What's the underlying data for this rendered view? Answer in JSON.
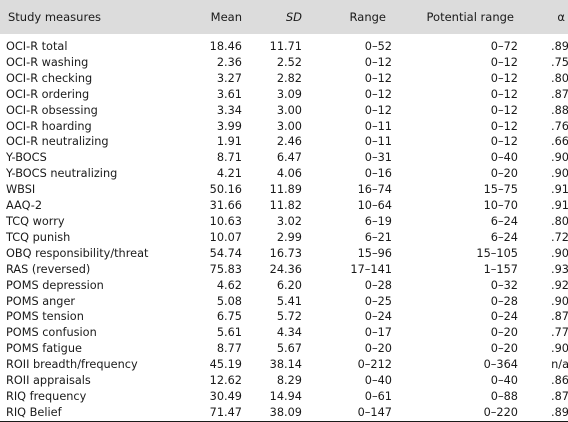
{
  "headers": {
    "measure": "Study measures",
    "mean": "Mean",
    "sd": "SD",
    "range": "Range",
    "potential_range": "Potential range",
    "alpha": "α"
  },
  "rows": [
    {
      "measure": "OCI-R total",
      "mean": "18.46",
      "sd": "11.71",
      "range": "0–52",
      "potential_range": "0–72",
      "alpha": ".89"
    },
    {
      "measure": "OCI-R washing",
      "mean": "2.36",
      "sd": "2.52",
      "range": "0–12",
      "potential_range": "0–12",
      "alpha": ".75"
    },
    {
      "measure": "OCI-R checking",
      "mean": "3.27",
      "sd": "2.82",
      "range": "0–12",
      "potential_range": "0–12",
      "alpha": ".80"
    },
    {
      "measure": "OCI-R ordering",
      "mean": "3.61",
      "sd": "3.09",
      "range": "0–12",
      "potential_range": "0–12",
      "alpha": ".87"
    },
    {
      "measure": "OCI-R obsessing",
      "mean": "3.34",
      "sd": "3.00",
      "range": "0–12",
      "potential_range": "0–12",
      "alpha": ".88"
    },
    {
      "measure": "OCI-R hoarding",
      "mean": "3.99",
      "sd": "3.00",
      "range": "0–11",
      "potential_range": "0–12",
      "alpha": ".76"
    },
    {
      "measure": "OCI-R neutralizing",
      "mean": "1.91",
      "sd": "2.46",
      "range": "0–11",
      "potential_range": "0–12",
      "alpha": ".66"
    },
    {
      "measure": "Y-BOCS",
      "mean": "8.71",
      "sd": "6.47",
      "range": "0–31",
      "potential_range": "0–40",
      "alpha": ".90"
    },
    {
      "measure": "Y-BOCS neutralizing",
      "mean": "4.21",
      "sd": "4.06",
      "range": "0–16",
      "potential_range": "0–20",
      "alpha": ".90"
    },
    {
      "measure": "WBSI",
      "mean": "50.16",
      "sd": "11.89",
      "range": "16–74",
      "potential_range": "15–75",
      "alpha": ".91"
    },
    {
      "measure": "AAQ-2",
      "mean": "31.66",
      "sd": "11.82",
      "range": "10–64",
      "potential_range": "10–70",
      "alpha": ".91"
    },
    {
      "measure": "TCQ worry",
      "mean": "10.63",
      "sd": "3.02",
      "range": "6–19",
      "potential_range": "6–24",
      "alpha": ".80"
    },
    {
      "measure": "TCQ punish",
      "mean": "10.07",
      "sd": "2.99",
      "range": "6–21",
      "potential_range": "6–24",
      "alpha": ".72"
    },
    {
      "measure": "OBQ responsibility/threat",
      "mean": "54.74",
      "sd": "16.73",
      "range": "15–96",
      "potential_range": "15–105",
      "alpha": ".90"
    },
    {
      "measure": "RAS (reversed)",
      "mean": "75.83",
      "sd": "24.36",
      "range": "17–141",
      "potential_range": "1–157",
      "alpha": ".93"
    },
    {
      "measure": "POMS depression",
      "mean": "4.62",
      "sd": "6.20",
      "range": "0–28",
      "potential_range": "0–32",
      "alpha": ".92"
    },
    {
      "measure": "POMS anger",
      "mean": "5.08",
      "sd": "5.41",
      "range": "0–25",
      "potential_range": "0–28",
      "alpha": ".90"
    },
    {
      "measure": "POMS tension",
      "mean": "6.75",
      "sd": "5.72",
      "range": "0–24",
      "potential_range": "0–24",
      "alpha": ".87"
    },
    {
      "measure": "POMS confusion",
      "mean": "5.61",
      "sd": "4.34",
      "range": "0–17",
      "potential_range": "0–20",
      "alpha": ".77"
    },
    {
      "measure": "POMS fatigue",
      "mean": "8.77",
      "sd": "5.67",
      "range": "0–20",
      "potential_range": "0–20",
      "alpha": ".90"
    },
    {
      "measure": "ROII breadth/frequency",
      "mean": "45.19",
      "sd": "38.14",
      "range": "0–212",
      "potential_range": "0–364",
      "alpha": "n/a"
    },
    {
      "measure": "ROII appraisals",
      "mean": "12.62",
      "sd": "8.29",
      "range": "0–40",
      "potential_range": "0–40",
      "alpha": ".86"
    },
    {
      "measure": "RIQ frequency",
      "mean": "30.49",
      "sd": "14.94",
      "range": "0–61",
      "potential_range": "0–88",
      "alpha": ".87"
    },
    {
      "measure": "RIQ Belief",
      "mean": "71.47",
      "sd": "38.09",
      "range": "0–147",
      "potential_range": "0–220",
      "alpha": ".89"
    }
  ],
  "colors": {
    "header_bg": "#dcdcdc",
    "text": "#1a1a1a",
    "rule": "#1a1a1a"
  }
}
